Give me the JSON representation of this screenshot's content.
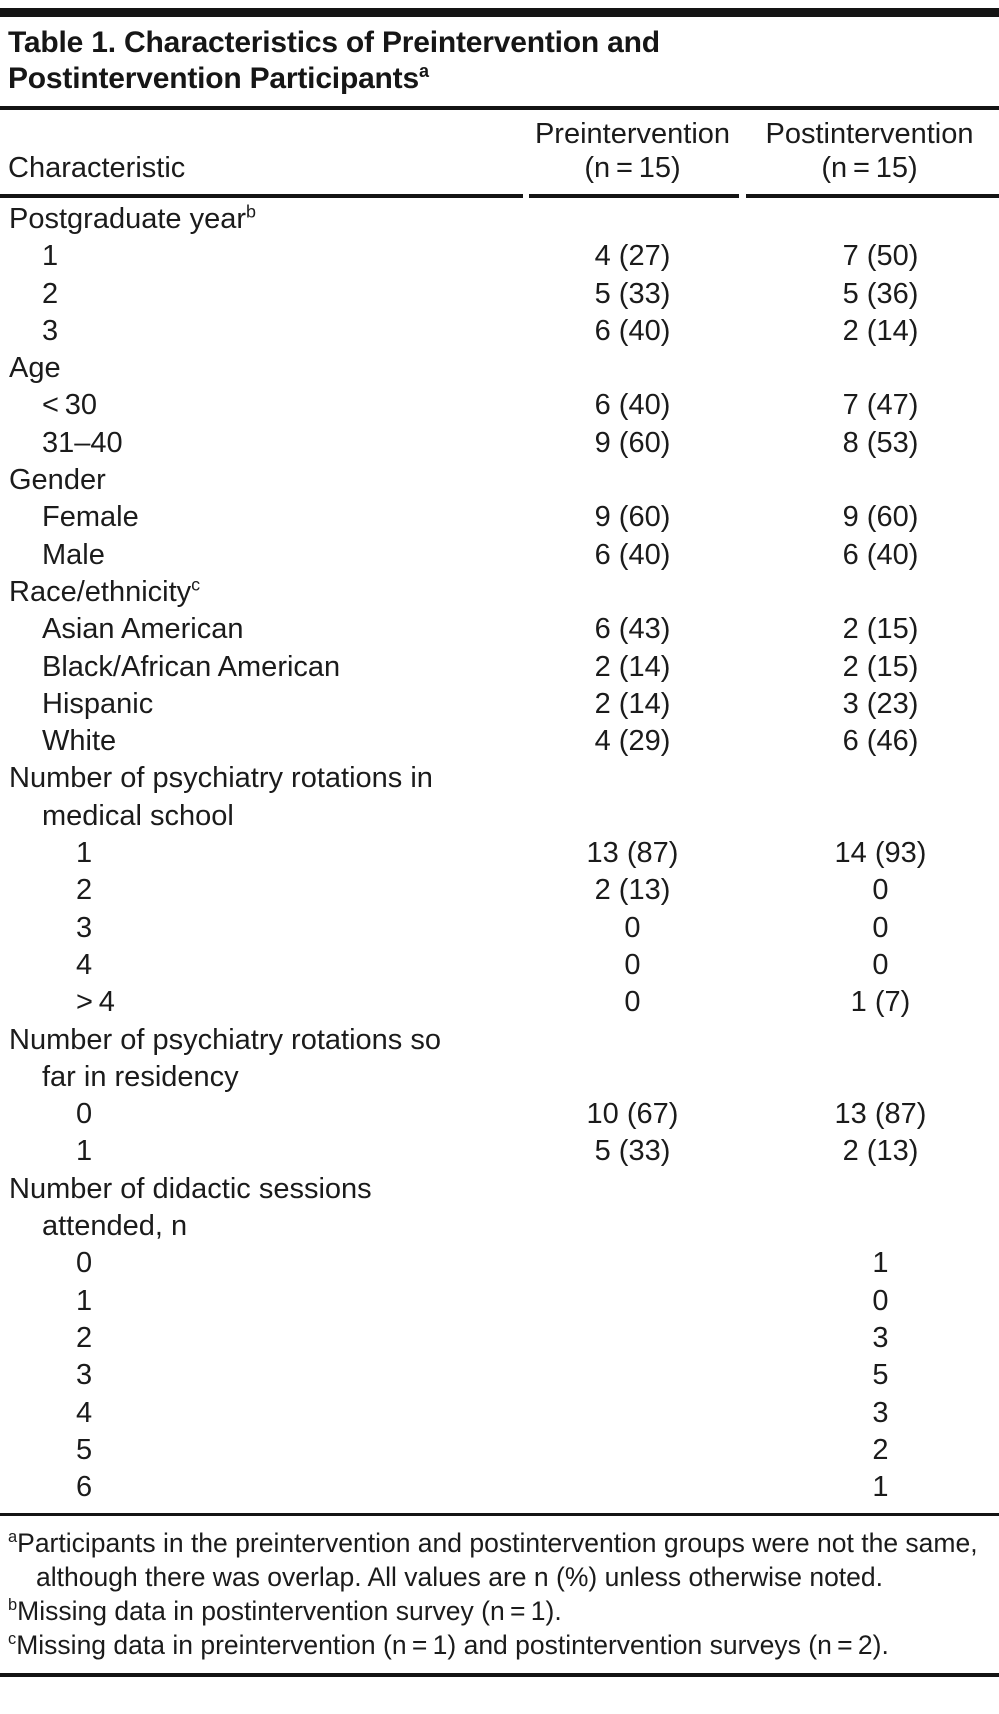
{
  "colors": {
    "text": "#1b1b1b",
    "rule": "#141414",
    "background": "#ffffff"
  },
  "title": {
    "text": "Table 1. Characteristics of Preintervention and Postintervention Participants",
    "superscript": "a"
  },
  "columns": {
    "characteristic": "Characteristic",
    "pre_line1": "Preintervention",
    "pre_line2": "(n = 15)",
    "post_line1": "Postintervention",
    "post_line2": "(n = 15)"
  },
  "table": {
    "rows": [
      {
        "label": "Postgraduate year",
        "sup": "b",
        "indent": 0,
        "pre": "",
        "post": ""
      },
      {
        "label": "1",
        "indent": 1,
        "pre": "4 (27)",
        "post": "7 (50)"
      },
      {
        "label": "2",
        "indent": 1,
        "pre": "5 (33)",
        "post": "5 (36)"
      },
      {
        "label": "3",
        "indent": 1,
        "pre": "6 (40)",
        "post": "2 (14)"
      },
      {
        "label": "Age",
        "indent": 0,
        "pre": "",
        "post": ""
      },
      {
        "label": "< 30",
        "indent": 1,
        "pre": "6 (40)",
        "post": "7 (47)"
      },
      {
        "label": "31–40",
        "indent": 1,
        "pre": "9 (60)",
        "post": "8 (53)"
      },
      {
        "label": "Gender",
        "indent": 0,
        "pre": "",
        "post": ""
      },
      {
        "label": "Female",
        "indent": 1,
        "pre": "9 (60)",
        "post": "9 (60)"
      },
      {
        "label": "Male",
        "indent": 1,
        "pre": "6 (40)",
        "post": "6 (40)"
      },
      {
        "label": "Race/ethnicity",
        "sup": "c",
        "indent": 0,
        "pre": "",
        "post": ""
      },
      {
        "label": "Asian American",
        "indent": 1,
        "pre": "6 (43)",
        "post": "2 (15)"
      },
      {
        "label": "Black/African American",
        "indent": 1,
        "pre": "2 (14)",
        "post": "2 (15)"
      },
      {
        "label": "Hispanic",
        "indent": 1,
        "pre": "2 (14)",
        "post": "3 (23)"
      },
      {
        "label": "White",
        "indent": 1,
        "pre": "4 (29)",
        "post": "6 (46)"
      },
      {
        "label": "Number of psychiatry rotations in",
        "indent": 0,
        "pre": "",
        "post": ""
      },
      {
        "label": "medical school",
        "indent": 1,
        "pre": "",
        "post": ""
      },
      {
        "label": "1",
        "indent": 2,
        "pre": "13 (87)",
        "post": "14 (93)"
      },
      {
        "label": "2",
        "indent": 2,
        "pre": "2 (13)",
        "post": "0"
      },
      {
        "label": "3",
        "indent": 2,
        "pre": "0",
        "post": "0"
      },
      {
        "label": "4",
        "indent": 2,
        "pre": "0",
        "post": "0"
      },
      {
        "label": "> 4",
        "indent": 2,
        "pre": "0",
        "post": "1 (7)"
      },
      {
        "label": "Number of psychiatry rotations so",
        "indent": 0,
        "pre": "",
        "post": ""
      },
      {
        "label": "far in residency",
        "indent": 1,
        "pre": "",
        "post": ""
      },
      {
        "label": "0",
        "indent": 2,
        "pre": "10 (67)",
        "post": "13 (87)"
      },
      {
        "label": "1",
        "indent": 2,
        "pre": "5 (33)",
        "post": "2 (13)"
      },
      {
        "label": "Number of didactic sessions",
        "indent": 0,
        "pre": "",
        "post": ""
      },
      {
        "label": "attended, n",
        "indent": 1,
        "pre": "",
        "post": ""
      },
      {
        "label": "0",
        "indent": 2,
        "pre": "",
        "post": "1"
      },
      {
        "label": "1",
        "indent": 2,
        "pre": "",
        "post": "0"
      },
      {
        "label": "2",
        "indent": 2,
        "pre": "",
        "post": "3"
      },
      {
        "label": "3",
        "indent": 2,
        "pre": "",
        "post": "5"
      },
      {
        "label": "4",
        "indent": 2,
        "pre": "",
        "post": "3"
      },
      {
        "label": "5",
        "indent": 2,
        "pre": "",
        "post": "2"
      },
      {
        "label": "6",
        "indent": 2,
        "pre": "",
        "post": "1"
      }
    ]
  },
  "footnotes": [
    {
      "marker": "a",
      "text": "Participants in the preintervention and postintervention groups were not the same, although there was overlap. All values are n (%) unless otherwise noted."
    },
    {
      "marker": "b",
      "text": "Missing data in postintervention survey (n = 1)."
    },
    {
      "marker": "c",
      "text": "Missing data in preintervention (n = 1) and postintervention surveys (n = 2)."
    }
  ]
}
